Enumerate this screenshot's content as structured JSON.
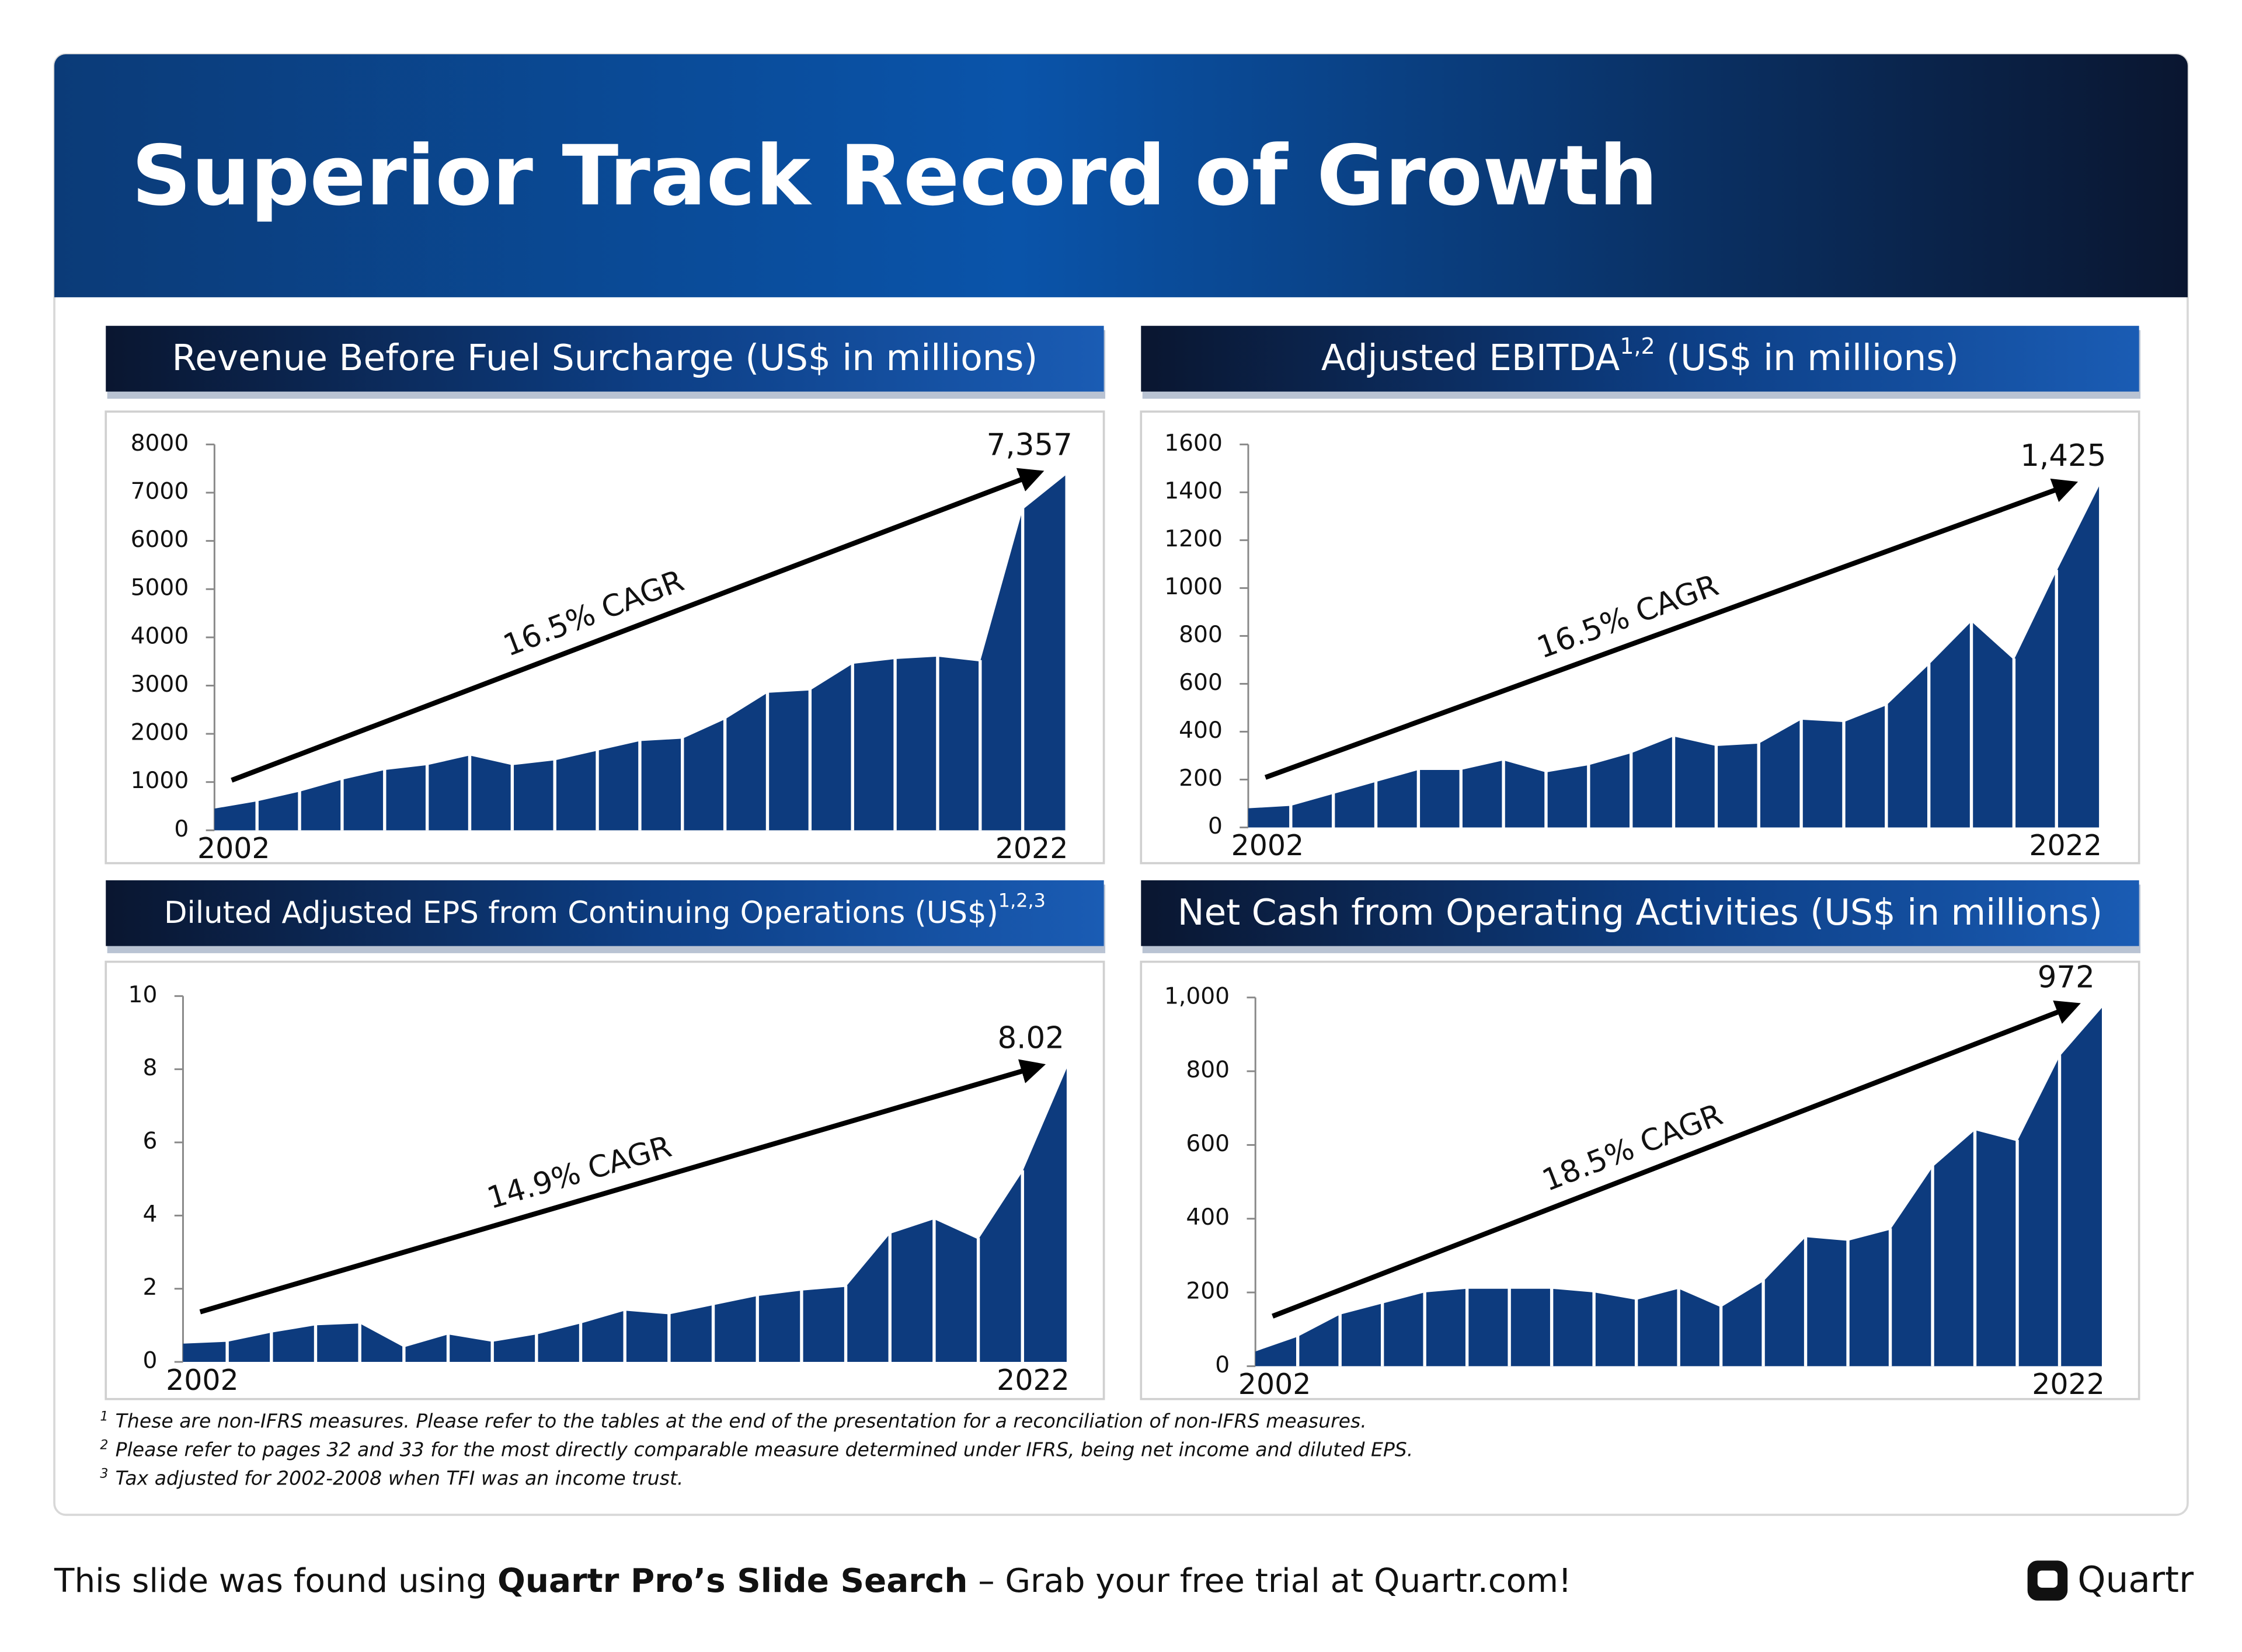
{
  "title": "Superior Track Record of Growth",
  "chart_data": [
    {
      "type": "area",
      "title": "Revenue Before Fuel Surcharge (US$ in millions)",
      "categories": [
        "2002",
        null,
        null,
        null,
        null,
        null,
        null,
        null,
        null,
        null,
        null,
        null,
        null,
        null,
        null,
        null,
        null,
        null,
        null,
        null,
        "2022"
      ],
      "values": [
        450,
        600,
        800,
        1050,
        1250,
        1350,
        1550,
        1350,
        1450,
        1650,
        1850,
        1900,
        2300,
        2850,
        2900,
        3450,
        3550,
        3600,
        3500,
        6650,
        7357
      ],
      "value_labels": [
        null,
        null,
        null,
        null,
        null,
        null,
        null,
        null,
        null,
        null,
        null,
        null,
        null,
        null,
        null,
        null,
        null,
        null,
        null,
        null,
        "7,357"
      ],
      "annotation": "16.5% CAGR",
      "color": "#0d3b7e",
      "ylim": [
        0,
        8000
      ],
      "yticks": [
        0,
        1000,
        2000,
        3000,
        4000,
        5000,
        6000,
        7000,
        8000
      ]
    },
    {
      "type": "area",
      "title": "Adjusted EBITDA",
      "title_superscript": "1,2",
      "title_suffix": " (US$ in millions)",
      "categories": [
        "2002",
        null,
        null,
        null,
        null,
        null,
        null,
        null,
        null,
        null,
        null,
        null,
        null,
        null,
        null,
        null,
        null,
        null,
        null,
        null,
        "2022"
      ],
      "values": [
        80,
        90,
        140,
        190,
        240,
        240,
        280,
        230,
        260,
        310,
        380,
        340,
        350,
        450,
        440,
        510,
        680,
        860,
        700,
        1070,
        1425
      ],
      "value_labels": [
        null,
        null,
        null,
        null,
        null,
        null,
        null,
        null,
        null,
        null,
        null,
        null,
        null,
        null,
        null,
        null,
        null,
        null,
        null,
        null,
        "1,425"
      ],
      "annotation": "16.5% CAGR",
      "color": "#0d3b7e",
      "ylim": [
        0,
        1600
      ],
      "yticks": [
        0,
        200,
        400,
        600,
        800,
        1000,
        1200,
        1400,
        1600
      ]
    },
    {
      "type": "area",
      "title": "Diluted Adjusted EPS from Continuing Operations (US$)",
      "title_superscript": "1,2,3",
      "categories": [
        "2002",
        null,
        null,
        null,
        null,
        null,
        null,
        null,
        null,
        null,
        null,
        null,
        null,
        null,
        null,
        null,
        null,
        null,
        null,
        null,
        "2022"
      ],
      "values": [
        0.5,
        0.55,
        0.8,
        1.0,
        1.05,
        0.4,
        0.75,
        0.55,
        0.75,
        1.05,
        1.4,
        1.3,
        1.55,
        1.8,
        1.95,
        2.05,
        3.5,
        3.9,
        3.35,
        5.2,
        8.02
      ],
      "annotation": "14.9% CAGR",
      "color": "#0d3b7e",
      "ylim": [
        0,
        10
      ],
      "yticks": [
        0,
        2,
        4,
        6,
        8,
        10
      ]
    },
    {
      "type": "area",
      "title": "Net Cash from Operating Activities (US$ in millions)",
      "categories": [
        "2002",
        null,
        null,
        null,
        null,
        null,
        null,
        null,
        null,
        null,
        null,
        null,
        null,
        null,
        null,
        null,
        null,
        null,
        null,
        null,
        "2022"
      ],
      "values": [
        40,
        80,
        140,
        170,
        200,
        210,
        210,
        210,
        200,
        180,
        210,
        160,
        230,
        350,
        340,
        370,
        540,
        640,
        610,
        840,
        972
      ],
      "annotation": "18.5% CAGR",
      "color": "#0d3b7e",
      "ylim": [
        0,
        1000
      ],
      "yticks": [
        0,
        200,
        400,
        600,
        800,
        {
          "value": 1000,
          "label": "1,000"
        }
      ]
    }
  ],
  "footnotes": [
    {
      "marker": "1",
      "text": "These are non-IFRS measures. Please refer to the tables at the end of the presentation for a reconciliation of non-IFRS measures."
    },
    {
      "marker": "2",
      "text": "Please refer to pages 32 and 33 for the most directly comparable measure determined under IFRS, being net income and diluted EPS."
    },
    {
      "marker": "3",
      "text": "Tax adjusted for 2002-2008 when TFI was an income trust."
    }
  ],
  "footer": {
    "text": "This slide was found using ",
    "bold": "Quartr Pro’s Slide Search",
    "suffix": " – Grab your free trial at Quartr.com!",
    "brand": "Quartr"
  }
}
